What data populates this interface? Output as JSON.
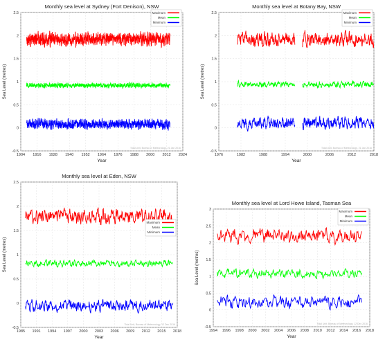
{
  "chart_data": [
    {
      "type": "line",
      "title": "Monthly sea level at Sydney (Fort Denison), NSW",
      "xlabel": "Year",
      "ylabel": "Sea Level (metres)",
      "xlim": [
        1910,
        2024
      ],
      "ylim": [
        -0.5,
        2.5
      ],
      "xticks": [
        "1904",
        "1916",
        "1928",
        "1940",
        "1952",
        "1964",
        "1976",
        "1988",
        "2000",
        "2012",
        "2024"
      ],
      "yticks": [
        "2.5",
        "2",
        "1.5",
        "1",
        "0.5",
        "0",
        "-0.5"
      ],
      "grid": true,
      "legend": "top-right",
      "credit": "Tidal Unit, Bureau of Meteorology, 21 Jan 2016",
      "x_start": 1914,
      "x_end": 2015,
      "gaps": [],
      "series": [
        {
          "name": "Maximum",
          "color": "#ff0000",
          "base": 1.92,
          "amp": 0.11
        },
        {
          "name": "Mean",
          "color": "#00ff00",
          "base": 0.92,
          "amp": 0.04
        },
        {
          "name": "Minimum",
          "color": "#0000ff",
          "base": 0.08,
          "amp": 0.08
        }
      ]
    },
    {
      "type": "line",
      "title": "Monthly sea level at Botany Bay, NSW",
      "xlabel": "Year",
      "ylabel": "Sea Level (metres)",
      "xlim": [
        1976,
        2018
      ],
      "ylim": [
        -0.5,
        2.5
      ],
      "xticks": [
        "1976",
        "1982",
        "1988",
        "1994",
        "2000",
        "2006",
        "2012",
        "2018"
      ],
      "yticks": [
        "2.5",
        "2",
        "1.5",
        "1",
        "0.5",
        "0",
        "-0.5"
      ],
      "grid": true,
      "legend": "top-right",
      "credit": "Tidal Unit, Bureau of Meteorology, 21 Jan 2016",
      "x_start": 1981,
      "x_end": 2018,
      "gaps": [
        [
          1996.6,
          1998.6
        ]
      ],
      "series": [
        {
          "name": "Maximum",
          "color": "#ff0000",
          "base": 1.92,
          "amp": 0.12
        },
        {
          "name": "Mean",
          "color": "#00ff00",
          "base": 0.94,
          "amp": 0.05
        },
        {
          "name": "Minimum",
          "color": "#0000ff",
          "base": 0.1,
          "amp": 0.1
        }
      ]
    },
    {
      "type": "line",
      "title": "Monthly sea level at Eden, NSW",
      "xlabel": "Year",
      "ylabel": "Sea Level (metres)",
      "xlim": [
        1985,
        2018
      ],
      "ylim": [
        -0.5,
        2.5
      ],
      "xticks": [
        "1985",
        "1991",
        "1994",
        "1997",
        "2000",
        "2003",
        "2006",
        "2009",
        "2012",
        "2015",
        "2018"
      ],
      "yticks": [
        "2.5",
        "2",
        "1.5",
        "1",
        "0.5",
        "0",
        "-0.5"
      ],
      "grid": true,
      "legend": "middle-right",
      "credit": "Tidal Unit, Bureau of Meteorology, 12 Dec 2016",
      "x_start": 1986,
      "x_end": 2017,
      "gaps": [],
      "series": [
        {
          "name": "Maximum",
          "color": "#ff0000",
          "base": 1.78,
          "amp": 0.12
        },
        {
          "name": "Mean",
          "color": "#00ff00",
          "base": 0.82,
          "amp": 0.05
        },
        {
          "name": "Minimum",
          "color": "#0000ff",
          "base": -0.05,
          "amp": 0.09
        }
      ]
    },
    {
      "type": "line",
      "title": "Monthly sea level at Lord Howe Island, Tasman Sea",
      "xlabel": "Year",
      "ylabel": "Sea Level (metres)",
      "xlim": [
        1994,
        2018
      ],
      "ylim": [
        -0.5,
        3
      ],
      "xticks": [
        "1994",
        "1996",
        "1998",
        "2000",
        "2002",
        "2004",
        "2006",
        "2008",
        "2010",
        "2012",
        "2014",
        "2016",
        "2018"
      ],
      "yticks": [
        "3",
        "2.5",
        "2",
        "1.5",
        "1",
        "0.5",
        "0",
        "-0.5"
      ],
      "grid": true,
      "legend": "top-right",
      "credit": "Tidal Unit, Bureau of Meteorology, 12 Dec 2016",
      "x_start": 1994.6,
      "x_end": 2016.8,
      "gaps": [],
      "series": [
        {
          "name": "Maximum",
          "color": "#ff0000",
          "base": 2.2,
          "amp": 0.16
        },
        {
          "name": "Mean",
          "color": "#00ff00",
          "base": 1.08,
          "amp": 0.1
        },
        {
          "name": "Minimum",
          "color": "#0000ff",
          "base": 0.22,
          "amp": 0.14
        }
      ]
    }
  ]
}
